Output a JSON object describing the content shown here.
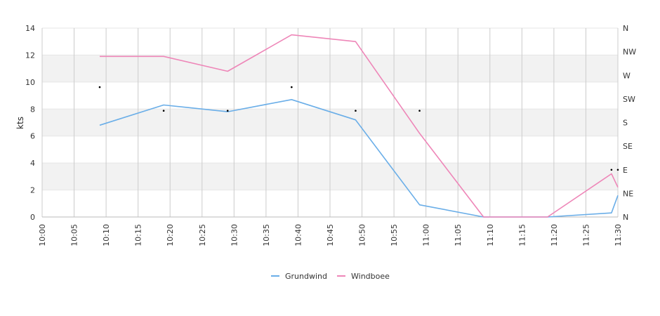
{
  "chart_data": {
    "type": "line",
    "ylabel": "kts",
    "ylim": [
      0,
      14
    ],
    "y_ticks": [
      "0",
      "2",
      "4",
      "6",
      "8",
      "10",
      "12",
      "14"
    ],
    "x_ticks": [
      "10:00",
      "10:05",
      "10:10",
      "10:15",
      "10:20",
      "10:25",
      "10:30",
      "10:35",
      "10:40",
      "10:45",
      "10:50",
      "10:55",
      "11:00",
      "11:05",
      "11:10",
      "11:15",
      "11:20",
      "11:25",
      "11:30"
    ],
    "direction_axis": [
      "N",
      "NE",
      "E",
      "SE",
      "S",
      "SW",
      "W",
      "NW",
      "N"
    ],
    "grid": "vertical lines at each x tick, alternating horizontal bands",
    "legend_placement": "bottom-center",
    "series": [
      {
        "name": "Grundwind",
        "color": "#6aaee8",
        "x": [
          "10:09",
          "10:19",
          "10:29",
          "10:39",
          "10:49",
          "10:59",
          "11:09",
          "11:19",
          "11:29",
          "11:30"
        ],
        "values": [
          6.8,
          8.3,
          7.8,
          8.7,
          7.2,
          0.9,
          0,
          0,
          0.3,
          1.6
        ]
      },
      {
        "name": "Windboee",
        "color": "#ee86b8",
        "x": [
          "10:09",
          "10:19",
          "10:29",
          "10:39",
          "10:49",
          "10:59",
          "11:09",
          "11:19",
          "11:29",
          "11:30"
        ],
        "values": [
          11.9,
          11.9,
          10.8,
          13.5,
          13.0,
          6.2,
          0,
          0,
          3.2,
          2.2
        ]
      }
    ],
    "direction_points": {
      "x": [
        "10:09",
        "10:19",
        "10:29",
        "10:39",
        "10:49",
        "10:59",
        "11:29",
        "11:30"
      ],
      "dir_deg": [
        247.5,
        202.5,
        202.5,
        247.5,
        202.5,
        202.5,
        90,
        90
      ]
    }
  }
}
